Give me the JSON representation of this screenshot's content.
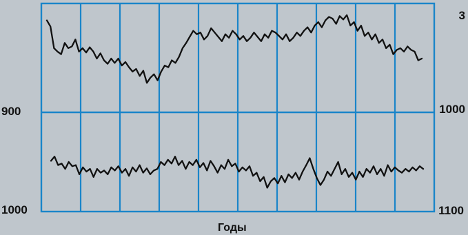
{
  "chart_data": {
    "type": "line",
    "xlabel": "Годы",
    "grid": true,
    "panels": [
      {
        "position": "top",
        "left_tick_label": "900",
        "right_tick_labels": [
          "3",
          "1000"
        ],
        "series": [
          {
            "values": [
              0.94,
              0.87,
              0.62,
              0.58,
              0.55,
              0.68,
              0.62,
              0.64,
              0.72,
              0.58,
              0.62,
              0.57,
              0.63,
              0.58,
              0.5,
              0.56,
              0.48,
              0.44,
              0.5,
              0.45,
              0.5,
              0.42,
              0.46,
              0.4,
              0.35,
              0.38,
              0.3,
              0.36,
              0.22,
              0.28,
              0.32,
              0.25,
              0.35,
              0.42,
              0.4,
              0.48,
              0.45,
              0.52,
              0.62,
              0.68,
              0.75,
              0.82,
              0.78,
              0.8,
              0.72,
              0.76,
              0.85,
              0.8,
              0.75,
              0.7,
              0.78,
              0.74,
              0.82,
              0.78,
              0.72,
              0.76,
              0.7,
              0.74,
              0.8,
              0.75,
              0.7,
              0.78,
              0.74,
              0.82,
              0.8,
              0.76,
              0.72,
              0.78,
              0.7,
              0.74,
              0.8,
              0.76,
              0.82,
              0.86,
              0.8,
              0.88,
              0.92,
              0.86,
              0.94,
              0.98,
              0.96,
              0.9,
              0.99,
              0.95,
              1.0,
              0.88,
              0.92,
              0.82,
              0.88,
              0.76,
              0.8,
              0.72,
              0.78,
              0.68,
              0.72,
              0.62,
              0.66,
              0.55,
              0.6,
              0.62,
              0.58,
              0.64,
              0.6,
              0.58,
              0.48,
              0.5
            ]
          }
        ]
      },
      {
        "position": "bottom",
        "left_tick_label": "1000",
        "right_tick_labels": [
          "1100"
        ],
        "series": [
          {
            "values": [
              0.7,
              0.78,
              0.62,
              0.65,
              0.55,
              0.68,
              0.6,
              0.62,
              0.45,
              0.58,
              0.5,
              0.55,
              0.4,
              0.55,
              0.48,
              0.52,
              0.45,
              0.58,
              0.52,
              0.6,
              0.48,
              0.55,
              0.42,
              0.58,
              0.5,
              0.62,
              0.48,
              0.56,
              0.45,
              0.52,
              0.55,
              0.68,
              0.62,
              0.72,
              0.65,
              0.78,
              0.62,
              0.7,
              0.55,
              0.68,
              0.62,
              0.72,
              0.58,
              0.66,
              0.52,
              0.7,
              0.6,
              0.48,
              0.62,
              0.55,
              0.72,
              0.6,
              0.65,
              0.5,
              0.58,
              0.52,
              0.6,
              0.42,
              0.48,
              0.32,
              0.4,
              0.2,
              0.32,
              0.38,
              0.28,
              0.42,
              0.3,
              0.45,
              0.38,
              0.48,
              0.35,
              0.5,
              0.62,
              0.75,
              0.55,
              0.38,
              0.25,
              0.35,
              0.5,
              0.42,
              0.55,
              0.68,
              0.45,
              0.55,
              0.4,
              0.48,
              0.35,
              0.5,
              0.4,
              0.55,
              0.48,
              0.6,
              0.45,
              0.55,
              0.42,
              0.62,
              0.5,
              0.58,
              0.52,
              0.48,
              0.55,
              0.5,
              0.58,
              0.52,
              0.6,
              0.55
            ]
          }
        ]
      }
    ]
  },
  "colors": {
    "background": "#bfc6cc",
    "grid": "#1a85c9",
    "line": "#111111",
    "text": "#111111"
  }
}
